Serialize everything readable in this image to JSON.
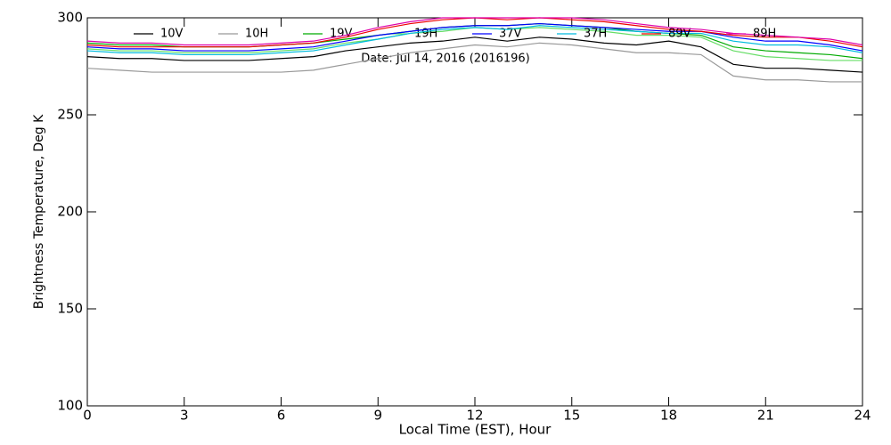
{
  "chart_data": {
    "type": "line",
    "title": "Date: Jul 14, 2016 (2016196)",
    "x_label": "Local Time (EST), Hour",
    "y_label": "Brightness Temperature, Deg K",
    "x": [
      0,
      1,
      2,
      3,
      4,
      5,
      6,
      7,
      8,
      9,
      10,
      11,
      12,
      13,
      14,
      15,
      16,
      17,
      18,
      19,
      20,
      21,
      22,
      23,
      24
    ],
    "xlim": [
      0,
      24
    ],
    "xticks": [
      0,
      3,
      6,
      9,
      12,
      15,
      18,
      21,
      24
    ],
    "ylim": [
      100,
      300
    ],
    "yticks": [
      100,
      150,
      200,
      250,
      300
    ],
    "series": [
      {
        "name": "10V",
        "color": "#000000",
        "values": [
          280,
          279,
          279,
          278,
          278,
          278,
          279,
          280,
          283,
          285,
          287,
          288,
          290,
          288,
          290,
          289,
          287,
          286,
          288,
          285,
          276,
          274,
          274,
          273,
          272
        ]
      },
      {
        "name": "10H",
        "color": "#999999",
        "values": [
          274,
          273,
          272,
          272,
          272,
          272,
          272,
          273,
          276,
          279,
          282,
          284,
          286,
          285,
          287,
          286,
          284,
          282,
          282,
          281,
          270,
          268,
          268,
          267,
          267
        ]
      },
      {
        "name": "19V",
        "color": "#00aa00",
        "values": [
          287,
          286,
          286,
          285,
          285,
          285,
          286,
          287,
          289,
          291,
          293,
          295,
          296,
          296,
          297,
          296,
          295,
          293,
          292,
          291,
          285,
          283,
          282,
          281,
          279
        ]
      },
      {
        "name": "19H",
        "color": "#66dd66",
        "values": [
          284,
          283,
          283,
          282,
          282,
          282,
          283,
          284,
          287,
          289,
          292,
          293,
          295,
          294,
          295,
          294,
          293,
          291,
          291,
          290,
          283,
          280,
          279,
          278,
          278
        ]
      },
      {
        "name": "37V",
        "color": "#0000ff",
        "values": [
          285,
          284,
          284,
          283,
          283,
          283,
          284,
          285,
          288,
          291,
          293,
          295,
          296,
          296,
          297,
          296,
          295,
          294,
          293,
          293,
          290,
          288,
          288,
          286,
          283
        ]
      },
      {
        "name": "37H",
        "color": "#00bbdd",
        "values": [
          283,
          282,
          282,
          281,
          281,
          281,
          282,
          283,
          286,
          289,
          292,
          294,
          295,
          294,
          296,
          295,
          294,
          293,
          292,
          292,
          288,
          286,
          286,
          285,
          282
        ]
      },
      {
        "name": "89V",
        "color": "#ee0000",
        "values": [
          286,
          285,
          285,
          285,
          285,
          285,
          286,
          287,
          290,
          294,
          297,
          299,
          300,
          299,
          300,
          299,
          298,
          296,
          294,
          293,
          291,
          290,
          290,
          288,
          285
        ]
      },
      {
        "name": "89H",
        "color": "#dd00aa",
        "values": [
          288,
          287,
          287,
          286,
          286,
          286,
          287,
          288,
          291,
          295,
          298,
          300,
          300,
          300,
          300,
          300,
          299,
          297,
          295,
          294,
          292,
          291,
          290,
          289,
          286
        ]
      }
    ]
  }
}
